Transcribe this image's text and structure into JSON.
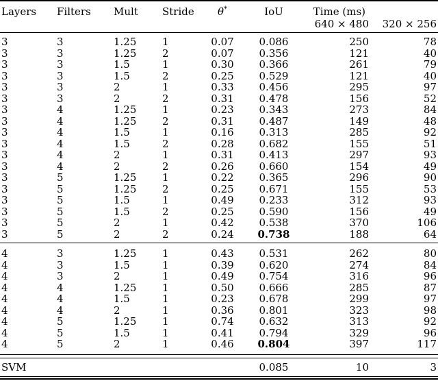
{
  "colors": {
    "text": "#000000",
    "background": "#ffffff",
    "rule": "#000000"
  },
  "table": {
    "headers": {
      "layers": "Layers",
      "filters": "Filters",
      "mult": "Mult",
      "stride": "Stride",
      "theta": "θ",
      "theta_sup": "*",
      "iou": "IoU",
      "time": "Time (ms)",
      "res1": "640 × 480",
      "res2": "320 × 256"
    },
    "block1_rows": [
      [
        "3",
        "3",
        "1.25",
        "1",
        "0.07",
        "0.086",
        "250",
        "78"
      ],
      [
        "3",
        "3",
        "1.25",
        "2",
        "0.07",
        "0.356",
        "121",
        "40"
      ],
      [
        "3",
        "3",
        "1.5",
        "1",
        "0.30",
        "0.366",
        "261",
        "79"
      ],
      [
        "3",
        "3",
        "1.5",
        "2",
        "0.25",
        "0.529",
        "121",
        "40"
      ],
      [
        "3",
        "3",
        "2",
        "1",
        "0.33",
        "0.456",
        "295",
        "97"
      ],
      [
        "3",
        "3",
        "2",
        "2",
        "0.31",
        "0.478",
        "156",
        "52"
      ],
      [
        "3",
        "4",
        "1.25",
        "1",
        "0.23",
        "0.343",
        "273",
        "84"
      ],
      [
        "3",
        "4",
        "1.25",
        "2",
        "0.31",
        "0.487",
        "149",
        "48"
      ],
      [
        "3",
        "4",
        "1.5",
        "1",
        "0.16",
        "0.313",
        "285",
        "92"
      ],
      [
        "3",
        "4",
        "1.5",
        "2",
        "0.28",
        "0.682",
        "155",
        "51"
      ],
      [
        "3",
        "4",
        "2",
        "1",
        "0.31",
        "0.413",
        "297",
        "93"
      ],
      [
        "3",
        "4",
        "2",
        "2",
        "0.26",
        "0.660",
        "154",
        "49"
      ],
      [
        "3",
        "5",
        "1.25",
        "1",
        "0.22",
        "0.365",
        "296",
        "90"
      ],
      [
        "3",
        "5",
        "1.25",
        "2",
        "0.25",
        "0.671",
        "155",
        "53"
      ],
      [
        "3",
        "5",
        "1.5",
        "1",
        "0.49",
        "0.233",
        "312",
        "93"
      ],
      [
        "3",
        "5",
        "1.5",
        "2",
        "0.25",
        "0.590",
        "156",
        "49"
      ],
      [
        "3",
        "5",
        "2",
        "1",
        "0.42",
        "0.538",
        "370",
        "106"
      ],
      [
        "3",
        "5",
        "2",
        "2",
        "0.24",
        "**0.738**",
        "188",
        "64"
      ]
    ],
    "block2_rows": [
      [
        "4",
        "3",
        "1.25",
        "1",
        "0.43",
        "0.531",
        "262",
        "80"
      ],
      [
        "4",
        "3",
        "1.5",
        "1",
        "0.39",
        "0.620",
        "274",
        "84"
      ],
      [
        "4",
        "3",
        "2",
        "1",
        "0.49",
        "0.754",
        "316",
        "96"
      ],
      [
        "4",
        "4",
        "1.25",
        "1",
        "0.50",
        "0.666",
        "285",
        "87"
      ],
      [
        "4",
        "4",
        "1.5",
        "1",
        "0.23",
        "0.678",
        "299",
        "97"
      ],
      [
        "4",
        "4",
        "2",
        "1",
        "0.36",
        "0.801",
        "323",
        "98"
      ],
      [
        "4",
        "5",
        "1.25",
        "1",
        "0.74",
        "0.632",
        "313",
        "92"
      ],
      [
        "4",
        "5",
        "1.5",
        "1",
        "0.41",
        "0.794",
        "329",
        "96"
      ],
      [
        "4",
        "5",
        "2",
        "1",
        "0.46",
        "**0.804**",
        "397",
        "117"
      ]
    ],
    "svm_row": [
      "SVM",
      "",
      "",
      "",
      "",
      "0.085",
      "10",
      "3"
    ]
  }
}
